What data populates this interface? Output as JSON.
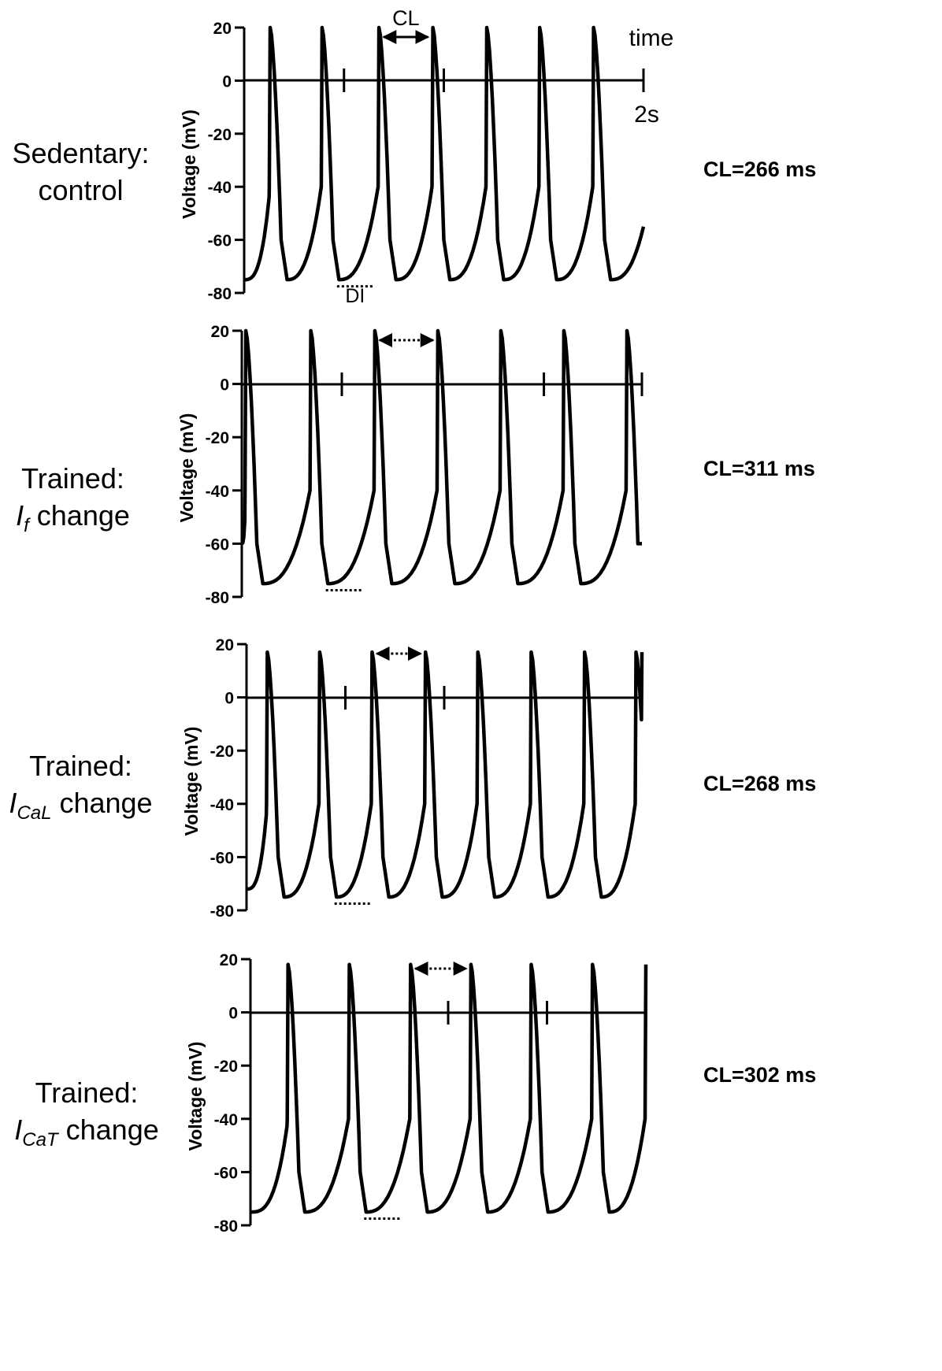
{
  "chart_data": [
    {
      "type": "line",
      "label_line1": "Sedentary:",
      "label_line2": "control",
      "current_sub": "",
      "cl_text": "CL=266 ms",
      "ylabel": "Voltage (mV)",
      "yticks": [
        "20",
        "0",
        "-20",
        "-40",
        "-60",
        "-80"
      ],
      "ylim": [
        -80,
        20
      ],
      "xlim_s": [
        0,
        2
      ],
      "marker_times_s": [
        0.5,
        1.0,
        2.0
      ],
      "series": [
        {
          "peak_times_s": [
            0.13,
            0.39,
            0.675,
            0.945,
            1.215,
            1.48,
            1.75
          ],
          "min_voltage_mV": -75,
          "peak_voltage_mV": 20,
          "start_voltage_mV": -75,
          "end_voltage_mV": -55
        }
      ],
      "annotations": {
        "cl_arrow": "CL",
        "di_label": "DI",
        "time_label": "time",
        "end_label": "2s"
      }
    },
    {
      "type": "line",
      "label_line1": "Trained:",
      "label_line2": " change",
      "current_main": "I",
      "current_sub": "f",
      "cl_text": "CL=311 ms",
      "ylabel": "Voltage (mV)",
      "yticks": [
        "20",
        "0",
        "-20",
        "-40",
        "-60",
        "-80"
      ],
      "ylim": [
        -80,
        20
      ],
      "xlim_s": [
        0,
        2
      ],
      "marker_times_s": [
        0.5,
        1.51,
        2.0
      ],
      "series": [
        {
          "peak_times_s": [
            0.02,
            0.345,
            0.665,
            0.98,
            1.295,
            1.61,
            1.925
          ],
          "min_voltage_mV": -75,
          "peak_voltage_mV": 20,
          "start_voltage_mV": -60,
          "end_voltage_mV": -60
        }
      ]
    },
    {
      "type": "line",
      "label_line1": "Trained:",
      "label_line2": " change",
      "current_main": "I",
      "current_sub": "CaL",
      "cl_text": "CL=268 ms",
      "ylabel": "Voltage (mV)",
      "yticks": [
        "20",
        "0",
        "-20",
        "-40",
        "-60",
        "-80"
      ],
      "ylim": [
        -80,
        20
      ],
      "xlim_s": [
        0,
        2
      ],
      "marker_times_s": [
        0.5,
        1.0,
        2.0
      ],
      "series": [
        {
          "peak_times_s": [
            0.105,
            0.37,
            0.635,
            0.905,
            1.17,
            1.44,
            1.71,
            1.97
          ],
          "min_voltage_mV": -75,
          "peak_voltage_mV": 17,
          "start_voltage_mV": -72,
          "end_voltage_mV": 17
        }
      ]
    },
    {
      "type": "line",
      "label_line1": "Trained:",
      "label_line2": " change",
      "current_main": "I",
      "current_sub": "CaT",
      "cl_text": "CL=302 ms",
      "ylabel": "Voltage (mV)",
      "yticks": [
        "20",
        "0",
        "-20",
        "-40",
        "-60",
        "-80"
      ],
      "ylim": [
        -80,
        20
      ],
      "xlim_s": [
        0,
        2
      ],
      "marker_times_s": [
        1.0,
        1.5,
        2.0
      ],
      "series": [
        {
          "peak_times_s": [
            0.19,
            0.5,
            0.81,
            1.115,
            1.42,
            1.73,
            2.0
          ],
          "min_voltage_mV": -75,
          "peak_voltage_mV": 18,
          "start_voltage_mV": -75,
          "end_voltage_mV": 18
        }
      ]
    }
  ]
}
